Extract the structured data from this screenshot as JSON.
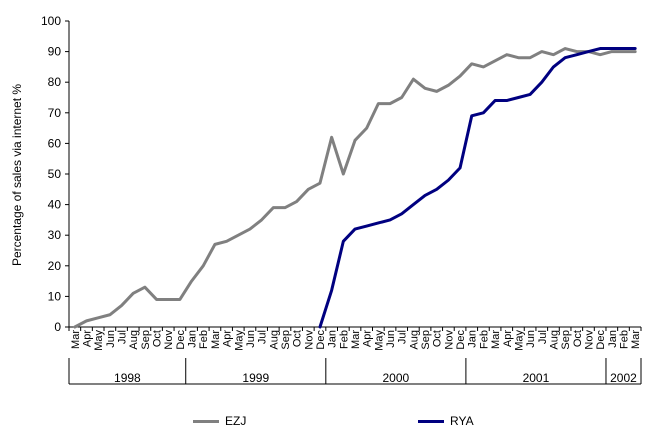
{
  "chart_data": {
    "type": "line",
    "ylabel": "Percentage of sales via internet %",
    "ylim": [
      0,
      100
    ],
    "yticks": [
      0,
      10,
      20,
      30,
      40,
      50,
      60,
      70,
      80,
      90,
      100
    ],
    "x": [
      "Mar",
      "Apr",
      "May",
      "Jun",
      "Jul",
      "Aug",
      "Sep",
      "Oct",
      "Nov",
      "Dec",
      "Jan",
      "Feb",
      "Mar",
      "Apr",
      "May",
      "Jun",
      "Jul",
      "Aug",
      "Sep",
      "Oct",
      "Nov",
      "Dec",
      "Jan",
      "Feb",
      "Mar",
      "Apr",
      "May",
      "Jun",
      "Jul",
      "Aug",
      "Sep",
      "Oct",
      "Nov",
      "Dec",
      "Jan",
      "Feb",
      "Mar",
      "Apr",
      "May",
      "Jun",
      "Jul",
      "Aug",
      "Sep",
      "Oct",
      "Nov",
      "Dec",
      "Jan",
      "Feb",
      "Mar"
    ],
    "years": [
      {
        "label": "1998",
        "start": 0,
        "count": 10
      },
      {
        "label": "1999",
        "start": 10,
        "count": 12
      },
      {
        "label": "2000",
        "start": 22,
        "count": 12
      },
      {
        "label": "2001",
        "start": 34,
        "count": 12
      },
      {
        "label": "2002",
        "start": 46,
        "count": 3
      }
    ],
    "series": [
      {
        "name": "EZJ",
        "color": "#808080",
        "values": [
          0,
          2,
          3,
          4,
          7,
          11,
          13,
          9,
          9,
          9,
          15,
          20,
          27,
          28,
          30,
          32,
          35,
          39,
          39,
          41,
          45,
          47,
          62,
          50,
          61,
          65,
          73,
          73,
          75,
          81,
          78,
          77,
          79,
          82,
          86,
          85,
          87,
          89,
          88,
          88,
          90,
          89,
          91,
          90,
          90,
          89,
          90,
          90,
          90
        ]
      },
      {
        "name": "RYA",
        "color": "#000080",
        "values": [
          null,
          null,
          null,
          null,
          null,
          null,
          null,
          null,
          null,
          null,
          null,
          null,
          null,
          null,
          null,
          null,
          null,
          null,
          null,
          null,
          null,
          0,
          12,
          28,
          32,
          33,
          34,
          35,
          37,
          40,
          43,
          45,
          48,
          52,
          69,
          70,
          74,
          74,
          75,
          76,
          80,
          85,
          88,
          89,
          90,
          91,
          91,
          91,
          91
        ]
      }
    ],
    "legend": {
      "position": "bottom"
    },
    "grid": false
  }
}
